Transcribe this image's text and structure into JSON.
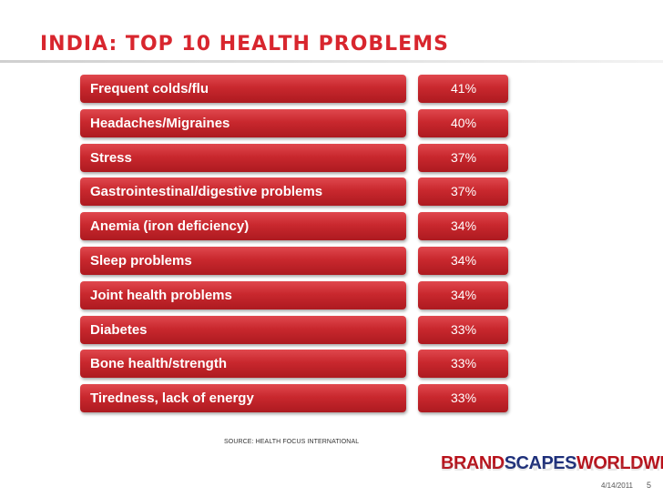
{
  "slide": {
    "title": "INDIA: TOP 10 HEALTH PROBLEMS",
    "source": "SOURCE: HEALTH FOCUS INTERNATIONAL",
    "date": "4/14/2011",
    "page": "5"
  },
  "brand": {
    "part1": "BRAND",
    "part2": "SCAPES",
    "part3": "WORLDWIDE"
  },
  "colors": {
    "accent": "#d8262e",
    "bar": "#c9282e",
    "brand_red": "#b8121b",
    "brand_blue": "#1d2f7a"
  },
  "chart_data": {
    "type": "bar",
    "title": "INDIA: TOP 10 HEALTH PROBLEMS",
    "unit": "%",
    "categories": [
      "Frequent colds/flu",
      "Headaches/Migraines",
      "Stress",
      "Gastrointestinal/digestive problems",
      "Anemia (iron deficiency)",
      "Sleep problems",
      "Joint health problems",
      "Diabetes",
      "Bone health/strength",
      "Tiredness, lack of energy"
    ],
    "values": [
      41,
      40,
      37,
      37,
      34,
      34,
      34,
      33,
      33,
      33
    ],
    "value_labels": [
      "41%",
      "40%",
      "37%",
      "37%",
      "34%",
      "34%",
      "34%",
      "33%",
      "33%",
      "33%"
    ]
  }
}
